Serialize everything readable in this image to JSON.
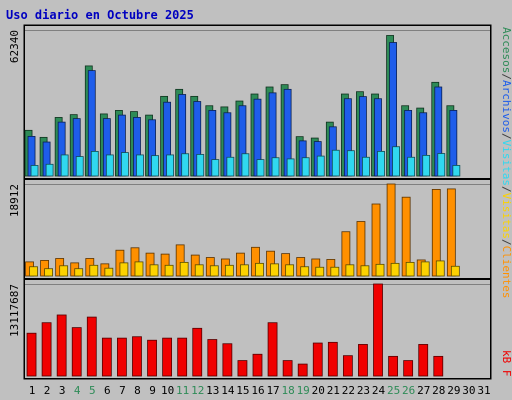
{
  "chart_data": {
    "type": "bar",
    "title": "Uso diario en Octubre 2025",
    "days": [
      "1",
      "2",
      "3",
      "4",
      "5",
      "6",
      "7",
      "8",
      "9",
      "10",
      "11",
      "12",
      "13",
      "14",
      "15",
      "16",
      "17",
      "18",
      "19",
      "20",
      "21",
      "22",
      "23",
      "24",
      "25",
      "26",
      "27",
      "28",
      "29",
      "30",
      "31"
    ],
    "weekend_days": [
      "4",
      "5",
      "11",
      "12",
      "18",
      "19",
      "25",
      "26"
    ],
    "panels": [
      {
        "ymax_label": "62340",
        "ymax": 62340,
        "series": [
          {
            "name": "Accesos",
            "color": "#2e8b57",
            "values": [
              19500,
              16500,
              25000,
              26200,
              47000,
              26500,
              28000,
              27500,
              26000,
              34000,
              37000,
              34000,
              30000,
              29500,
              32000,
              35000,
              38000,
              39000,
              16800,
              16200,
              23000,
              35000,
              36000,
              35000,
              60000,
              30000,
              29000,
              40000,
              30000,
              0,
              0
            ]
          },
          {
            "name": "Archivos",
            "color": "#1e5dea",
            "values": [
              16900,
              14500,
              23000,
              24500,
              45000,
              24500,
              26000,
              25000,
              24000,
              31500,
              34800,
              31800,
              28000,
              27000,
              30000,
              32800,
              35500,
              37000,
              15000,
              14700,
              21000,
              33000,
              33900,
              33000,
              57000,
              28000,
              27000,
              38000,
              28000,
              0,
              0
            ]
          },
          {
            "name": "Visitas",
            "color": "#30d8f0",
            "values": [
              4500,
              5000,
              9000,
              8300,
              10500,
              9000,
              10000,
              9000,
              8700,
              9000,
              9500,
              9200,
              7000,
              8000,
              9500,
              7000,
              7800,
              7300,
              7800,
              8500,
              11000,
              10800,
              8000,
              10500,
              12500,
              8000,
              8800,
              9600,
              4500,
              0,
              0
            ]
          }
        ]
      },
      {
        "ymax_label": "18912",
        "ymax": 18912,
        "series": [
          {
            "name": "Clientes",
            "color": "#ff9000",
            "values": [
              2900,
              3200,
              3600,
              2700,
              3600,
              2500,
              5300,
              5800,
              4700,
              4500,
              6400,
              4300,
              3800,
              3500,
              4700,
              5900,
              5100,
              4600,
              3800,
              3500,
              3400,
              9100,
              11200,
              14800,
              18912,
              16200,
              3300,
              17800,
              17900,
              0,
              0
            ]
          },
          {
            "name": "Visitas",
            "color": "#fcd200",
            "values": [
              1900,
              1500,
              2100,
              1500,
              2200,
              1600,
              2700,
              2900,
              2300,
              2200,
              2800,
              2300,
              2100,
              2200,
              2300,
              2600,
              2500,
              2300,
              1900,
              1800,
              1800,
              2300,
              2100,
              2400,
              2600,
              2800,
              2900,
              3100,
              2000,
              0,
              0
            ]
          }
        ]
      },
      {
        "ymax_label": "13117687",
        "ymax": 13117687,
        "series": [
          {
            "name": "kB F",
            "color": "#f00000",
            "values": [
              6100000,
              7600000,
              8700000,
              6900000,
              8400000,
              5400000,
              5400000,
              5600000,
              5100000,
              5400000,
              5400000,
              6800000,
              5200000,
              4600000,
              2200000,
              3100000,
              7600000,
              2200000,
              1700000,
              4700000,
              4800000,
              2900000,
              4500000,
              13117687,
              2800000,
              2200000,
              4500000,
              2800000,
              0,
              0,
              0
            ]
          }
        ]
      }
    ],
    "right_labels": [
      {
        "text": "Accesos",
        "color": "#2e8b57"
      },
      {
        "text": "/",
        "color": "#404040"
      },
      {
        "text": "Archivos",
        "color": "#1e5dea"
      },
      {
        "text": "/",
        "color": "#404040"
      },
      {
        "text": "Visitas",
        "color": "#30d8f0"
      },
      {
        "text": "/",
        "color": "#404040"
      },
      {
        "text": "Visitas",
        "color": "#fcd200"
      },
      {
        "text": "/",
        "color": "#404040"
      },
      {
        "text": "Clientes",
        "color": "#ff9000"
      }
    ],
    "right_label_bottom": {
      "text": "kB F",
      "color": "#f00000"
    }
  }
}
